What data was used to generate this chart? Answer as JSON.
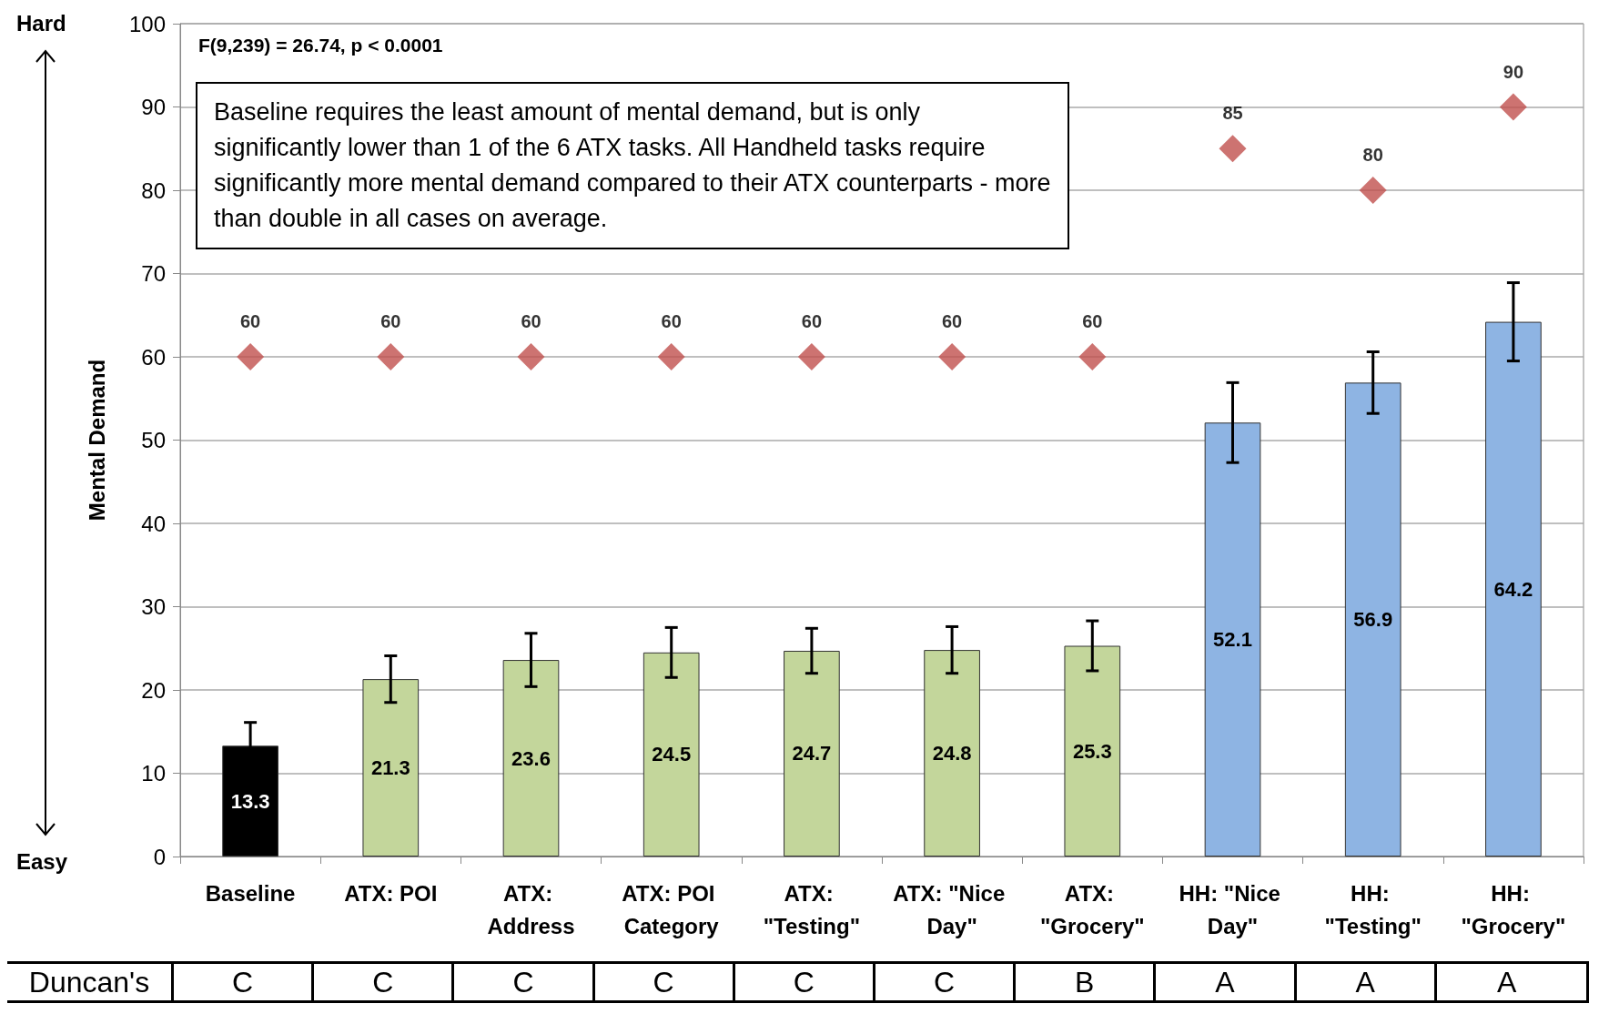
{
  "chart_data": {
    "type": "bar",
    "ylabel": "Mental Demand",
    "categories": [
      "Baseline",
      "ATX: POI",
      "ATX: Address",
      "ATX: POI Category",
      "ATX: \"Testing\"",
      "ATX: \"Nice Day\"",
      "ATX: \"Grocery\"",
      "HH: \"Nice Day\"",
      "HH: \"Testing\"",
      "HH: \"Grocery\""
    ],
    "series": [
      {
        "type": "bar",
        "colors": [
          "#000000",
          "#c3d69b",
          "#c3d69b",
          "#c3d69b",
          "#c3d69b",
          "#c3d69b",
          "#c3d69b",
          "#8eb4e3",
          "#8eb4e3",
          "#8eb4e3"
        ],
        "values": [
          13.3,
          21.3,
          23.6,
          24.5,
          24.7,
          24.8,
          25.3,
          52.1,
          56.9,
          64.2
        ],
        "errors": [
          2.8,
          2.8,
          3.2,
          3.0,
          2.7,
          2.8,
          3.0,
          4.8,
          3.7,
          4.7
        ]
      },
      {
        "type": "scatter",
        "color": "#c0504d",
        "x": [
          "Baseline",
          "ATX: POI",
          "ATX: Address",
          "ATX: POI Category",
          "ATX: \"Testing\"",
          "ATX: \"Nice Day\"",
          "ATX: \"Grocery\"",
          "HH: \"Nice Day\"",
          "HH: \"Testing\"",
          "HH: \"Grocery\""
        ],
        "values": [
          60,
          60,
          60,
          60,
          60,
          60,
          60,
          85,
          80,
          90
        ]
      }
    ],
    "data_labels": true,
    "marker": "diamond",
    "grid": "y",
    "ylim": [
      0,
      100
    ],
    "yticks": [
      0,
      10,
      20,
      30,
      40,
      50,
      60,
      70,
      80,
      90,
      100
    ],
    "annotations": [
      "F(9,239) = 26.74, p < 0.0001",
      "Baseline requires the least amount of mental demand, but is only significantly lower than 1 of the 6 ATX tasks.  All Handheld tasks require significantly more mental demand compared to their ATX counterparts - more than double in all cases on average.",
      "Hard",
      "Easy",
      "Duncan's",
      "C",
      "C",
      "C",
      "C",
      "C",
      "C",
      "B",
      "A",
      "A",
      "A"
    ]
  }
}
